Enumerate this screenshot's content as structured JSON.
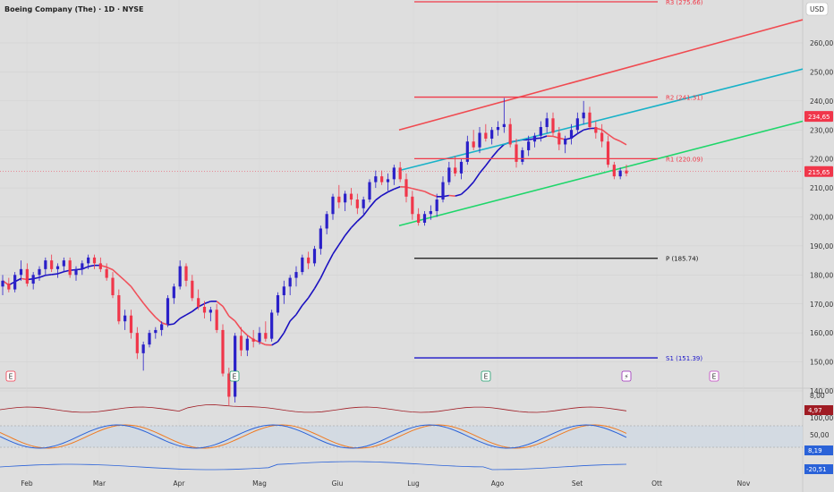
{
  "header": {
    "title": "Boeing Company (The) · 1D · NYSE",
    "currency_button": "USD"
  },
  "colors": {
    "up": "#2a20c8",
    "down": "#f0364a",
    "ma_up": "#1a10c0",
    "ma_down": "#f0505a",
    "channel_upper": "#f04a50",
    "channel_mid": "#18b2c8",
    "channel_lower": "#1ed66a",
    "pivot": "#111111",
    "s1": "#1a14c8",
    "r_level": "#f03a4a"
  },
  "price_axis": {
    "ticks": [
      "260,00",
      "250,00",
      "240,00",
      "230,00",
      "220,00",
      "210,00",
      "200,00",
      "190,00",
      "180,00",
      "170,00",
      "160,00",
      "150,00",
      "140,00"
    ],
    "tags": [
      {
        "value": "234,65",
        "color": "#f0364a"
      },
      {
        "value": "215,65",
        "color": "#f0364a"
      }
    ]
  },
  "time_axis": {
    "labels": [
      "Feb",
      "Mar",
      "Apr",
      "Mag",
      "Giu",
      "Lug",
      "Ago",
      "Set",
      "Ott",
      "Nov"
    ]
  },
  "levels": {
    "r3": "R3 (275.66)",
    "r2": "R2 (241.31)",
    "r1": "R1 (220.09)",
    "p": "P (185.74)",
    "s1": "S1 (151.39)"
  },
  "events": [
    {
      "label": "E",
      "color": "#f0364a"
    },
    {
      "label": "E",
      "color": "#1a9a6a"
    },
    {
      "label": "E",
      "color": "#1a9a6a"
    },
    {
      "label": "⚡",
      "color": "#9a2ab8"
    },
    {
      "label": "E",
      "color": "#c040c0"
    }
  ],
  "indicators": {
    "atr": {
      "tick": "8,00",
      "value": "4,97",
      "color": "#a01c24"
    },
    "stoch": {
      "ticks": [
        "100,00",
        "50,00"
      ],
      "value": "8,19",
      "color": "#2a62d8"
    },
    "osc": {
      "value": "-20,51",
      "color": "#2a62d8",
      "tick": "-20,51"
    }
  },
  "chart_data": {
    "type": "candlestick",
    "ylim": [
      132,
      271
    ],
    "xlim_months": [
      "Feb",
      "Nov"
    ],
    "candles": [
      {
        "o": 176,
        "h": 180,
        "l": 173,
        "c": 178
      },
      {
        "o": 177,
        "h": 179,
        "l": 174,
        "c": 175
      },
      {
        "o": 175,
        "h": 181,
        "l": 174,
        "c": 180
      },
      {
        "o": 180,
        "h": 185,
        "l": 178,
        "c": 182
      },
      {
        "o": 182,
        "h": 184,
        "l": 176,
        "c": 177
      },
      {
        "o": 177,
        "h": 181,
        "l": 175,
        "c": 180
      },
      {
        "o": 180,
        "h": 183,
        "l": 178,
        "c": 182
      },
      {
        "o": 182,
        "h": 186,
        "l": 180,
        "c": 185
      },
      {
        "o": 185,
        "h": 187,
        "l": 181,
        "c": 182
      },
      {
        "o": 182,
        "h": 184,
        "l": 179,
        "c": 183
      },
      {
        "o": 183,
        "h": 186,
        "l": 181,
        "c": 185
      },
      {
        "o": 185,
        "h": 186,
        "l": 179,
        "c": 180
      },
      {
        "o": 180,
        "h": 183,
        "l": 178,
        "c": 182
      },
      {
        "o": 182,
        "h": 185,
        "l": 180,
        "c": 184
      },
      {
        "o": 184,
        "h": 187,
        "l": 182,
        "c": 186
      },
      {
        "o": 186,
        "h": 187,
        "l": 182,
        "c": 184
      },
      {
        "o": 184,
        "h": 186,
        "l": 181,
        "c": 182
      },
      {
        "o": 182,
        "h": 184,
        "l": 178,
        "c": 179
      },
      {
        "o": 179,
        "h": 181,
        "l": 172,
        "c": 173
      },
      {
        "o": 173,
        "h": 175,
        "l": 163,
        "c": 164
      },
      {
        "o": 164,
        "h": 168,
        "l": 161,
        "c": 166
      },
      {
        "o": 166,
        "h": 168,
        "l": 158,
        "c": 160
      },
      {
        "o": 160,
        "h": 162,
        "l": 151,
        "c": 153
      },
      {
        "o": 153,
        "h": 157,
        "l": 147,
        "c": 156
      },
      {
        "o": 156,
        "h": 161,
        "l": 155,
        "c": 160
      },
      {
        "o": 160,
        "h": 162,
        "l": 158,
        "c": 161
      },
      {
        "o": 161,
        "h": 164,
        "l": 159,
        "c": 163
      },
      {
        "o": 163,
        "h": 173,
        "l": 162,
        "c": 172
      },
      {
        "o": 172,
        "h": 177,
        "l": 170,
        "c": 176
      },
      {
        "o": 176,
        "h": 185,
        "l": 175,
        "c": 183
      },
      {
        "o": 183,
        "h": 184,
        "l": 176,
        "c": 178
      },
      {
        "o": 178,
        "h": 180,
        "l": 171,
        "c": 172
      },
      {
        "o": 172,
        "h": 175,
        "l": 168,
        "c": 169
      },
      {
        "o": 169,
        "h": 171,
        "l": 165,
        "c": 167
      },
      {
        "o": 167,
        "h": 169,
        "l": 164,
        "c": 168
      },
      {
        "o": 168,
        "h": 170,
        "l": 160,
        "c": 161
      },
      {
        "o": 161,
        "h": 163,
        "l": 145,
        "c": 146
      },
      {
        "o": 146,
        "h": 148,
        "l": 135,
        "c": 138
      },
      {
        "o": 138,
        "h": 160,
        "l": 136,
        "c": 159
      },
      {
        "o": 159,
        "h": 162,
        "l": 152,
        "c": 154
      },
      {
        "o": 154,
        "h": 159,
        "l": 152,
        "c": 158
      },
      {
        "o": 158,
        "h": 161,
        "l": 155,
        "c": 157
      },
      {
        "o": 157,
        "h": 162,
        "l": 156,
        "c": 160
      },
      {
        "o": 160,
        "h": 164,
        "l": 157,
        "c": 158
      },
      {
        "o": 158,
        "h": 168,
        "l": 157,
        "c": 167
      },
      {
        "o": 167,
        "h": 174,
        "l": 166,
        "c": 173
      },
      {
        "o": 173,
        "h": 178,
        "l": 170,
        "c": 176
      },
      {
        "o": 176,
        "h": 180,
        "l": 173,
        "c": 179
      },
      {
        "o": 179,
        "h": 183,
        "l": 176,
        "c": 181
      },
      {
        "o": 181,
        "h": 187,
        "l": 180,
        "c": 186
      },
      {
        "o": 186,
        "h": 188,
        "l": 182,
        "c": 184
      },
      {
        "o": 184,
        "h": 190,
        "l": 183,
        "c": 189
      },
      {
        "o": 189,
        "h": 197,
        "l": 187,
        "c": 196
      },
      {
        "o": 196,
        "h": 202,
        "l": 194,
        "c": 201
      },
      {
        "o": 201,
        "h": 208,
        "l": 199,
        "c": 207
      },
      {
        "o": 207,
        "h": 211,
        "l": 203,
        "c": 205
      },
      {
        "o": 205,
        "h": 209,
        "l": 202,
        "c": 208
      },
      {
        "o": 208,
        "h": 210,
        "l": 204,
        "c": 206
      },
      {
        "o": 206,
        "h": 208,
        "l": 201,
        "c": 203
      },
      {
        "o": 203,
        "h": 207,
        "l": 201,
        "c": 206
      },
      {
        "o": 206,
        "h": 213,
        "l": 205,
        "c": 212
      },
      {
        "o": 212,
        "h": 216,
        "l": 210,
        "c": 214
      },
      {
        "o": 214,
        "h": 216,
        "l": 211,
        "c": 212
      },
      {
        "o": 212,
        "h": 215,
        "l": 209,
        "c": 213
      },
      {
        "o": 213,
        "h": 218,
        "l": 211,
        "c": 217
      },
      {
        "o": 217,
        "h": 219,
        "l": 212,
        "c": 213
      },
      {
        "o": 213,
        "h": 215,
        "l": 205,
        "c": 207
      },
      {
        "o": 207,
        "h": 209,
        "l": 199,
        "c": 201
      },
      {
        "o": 201,
        "h": 203,
        "l": 197,
        "c": 198
      },
      {
        "o": 198,
        "h": 202,
        "l": 197,
        "c": 201
      },
      {
        "o": 201,
        "h": 204,
        "l": 199,
        "c": 202
      },
      {
        "o": 202,
        "h": 208,
        "l": 200,
        "c": 206
      },
      {
        "o": 206,
        "h": 214,
        "l": 205,
        "c": 212
      },
      {
        "o": 212,
        "h": 219,
        "l": 211,
        "c": 217
      },
      {
        "o": 217,
        "h": 221,
        "l": 214,
        "c": 215
      },
      {
        "o": 215,
        "h": 220,
        "l": 213,
        "c": 219
      },
      {
        "o": 219,
        "h": 228,
        "l": 218,
        "c": 226
      },
      {
        "o": 226,
        "h": 230,
        "l": 223,
        "c": 224
      },
      {
        "o": 224,
        "h": 231,
        "l": 222,
        "c": 229
      },
      {
        "o": 229,
        "h": 232,
        "l": 226,
        "c": 227
      },
      {
        "o": 227,
        "h": 231,
        "l": 225,
        "c": 230
      },
      {
        "o": 230,
        "h": 233,
        "l": 228,
        "c": 231
      },
      {
        "o": 231,
        "h": 241,
        "l": 229,
        "c": 232
      },
      {
        "o": 232,
        "h": 234,
        "l": 224,
        "c": 225
      },
      {
        "o": 225,
        "h": 227,
        "l": 217,
        "c": 219
      },
      {
        "o": 219,
        "h": 224,
        "l": 218,
        "c": 223
      },
      {
        "o": 223,
        "h": 228,
        "l": 221,
        "c": 226
      },
      {
        "o": 226,
        "h": 229,
        "l": 224,
        "c": 228
      },
      {
        "o": 228,
        "h": 233,
        "l": 226,
        "c": 231
      },
      {
        "o": 231,
        "h": 236,
        "l": 229,
        "c": 234
      },
      {
        "o": 234,
        "h": 236,
        "l": 228,
        "c": 229
      },
      {
        "o": 229,
        "h": 231,
        "l": 223,
        "c": 225
      },
      {
        "o": 225,
        "h": 228,
        "l": 222,
        "c": 227
      },
      {
        "o": 227,
        "h": 232,
        "l": 225,
        "c": 230
      },
      {
        "o": 230,
        "h": 236,
        "l": 229,
        "c": 234
      },
      {
        "o": 234,
        "h": 240,
        "l": 232,
        "c": 236
      },
      {
        "o": 236,
        "h": 238,
        "l": 230,
        "c": 231
      },
      {
        "o": 231,
        "h": 233,
        "l": 227,
        "c": 229
      },
      {
        "o": 229,
        "h": 232,
        "l": 224,
        "c": 226
      },
      {
        "o": 226,
        "h": 228,
        "l": 217,
        "c": 218
      },
      {
        "o": 218,
        "h": 219,
        "l": 213,
        "c": 214
      },
      {
        "o": 214,
        "h": 217,
        "l": 213,
        "c": 216
      },
      {
        "o": 216,
        "h": 218,
        "l": 214,
        "c": 215
      }
    ],
    "levels": [
      {
        "name": "R3",
        "value": 275.66
      },
      {
        "name": "R2",
        "value": 241.31
      },
      {
        "name": "R1",
        "value": 220.09
      },
      {
        "name": "P",
        "value": 185.74
      },
      {
        "name": "S1",
        "value": 151.39
      }
    ],
    "last_price": 215.65,
    "marked_price": 234.65
  }
}
